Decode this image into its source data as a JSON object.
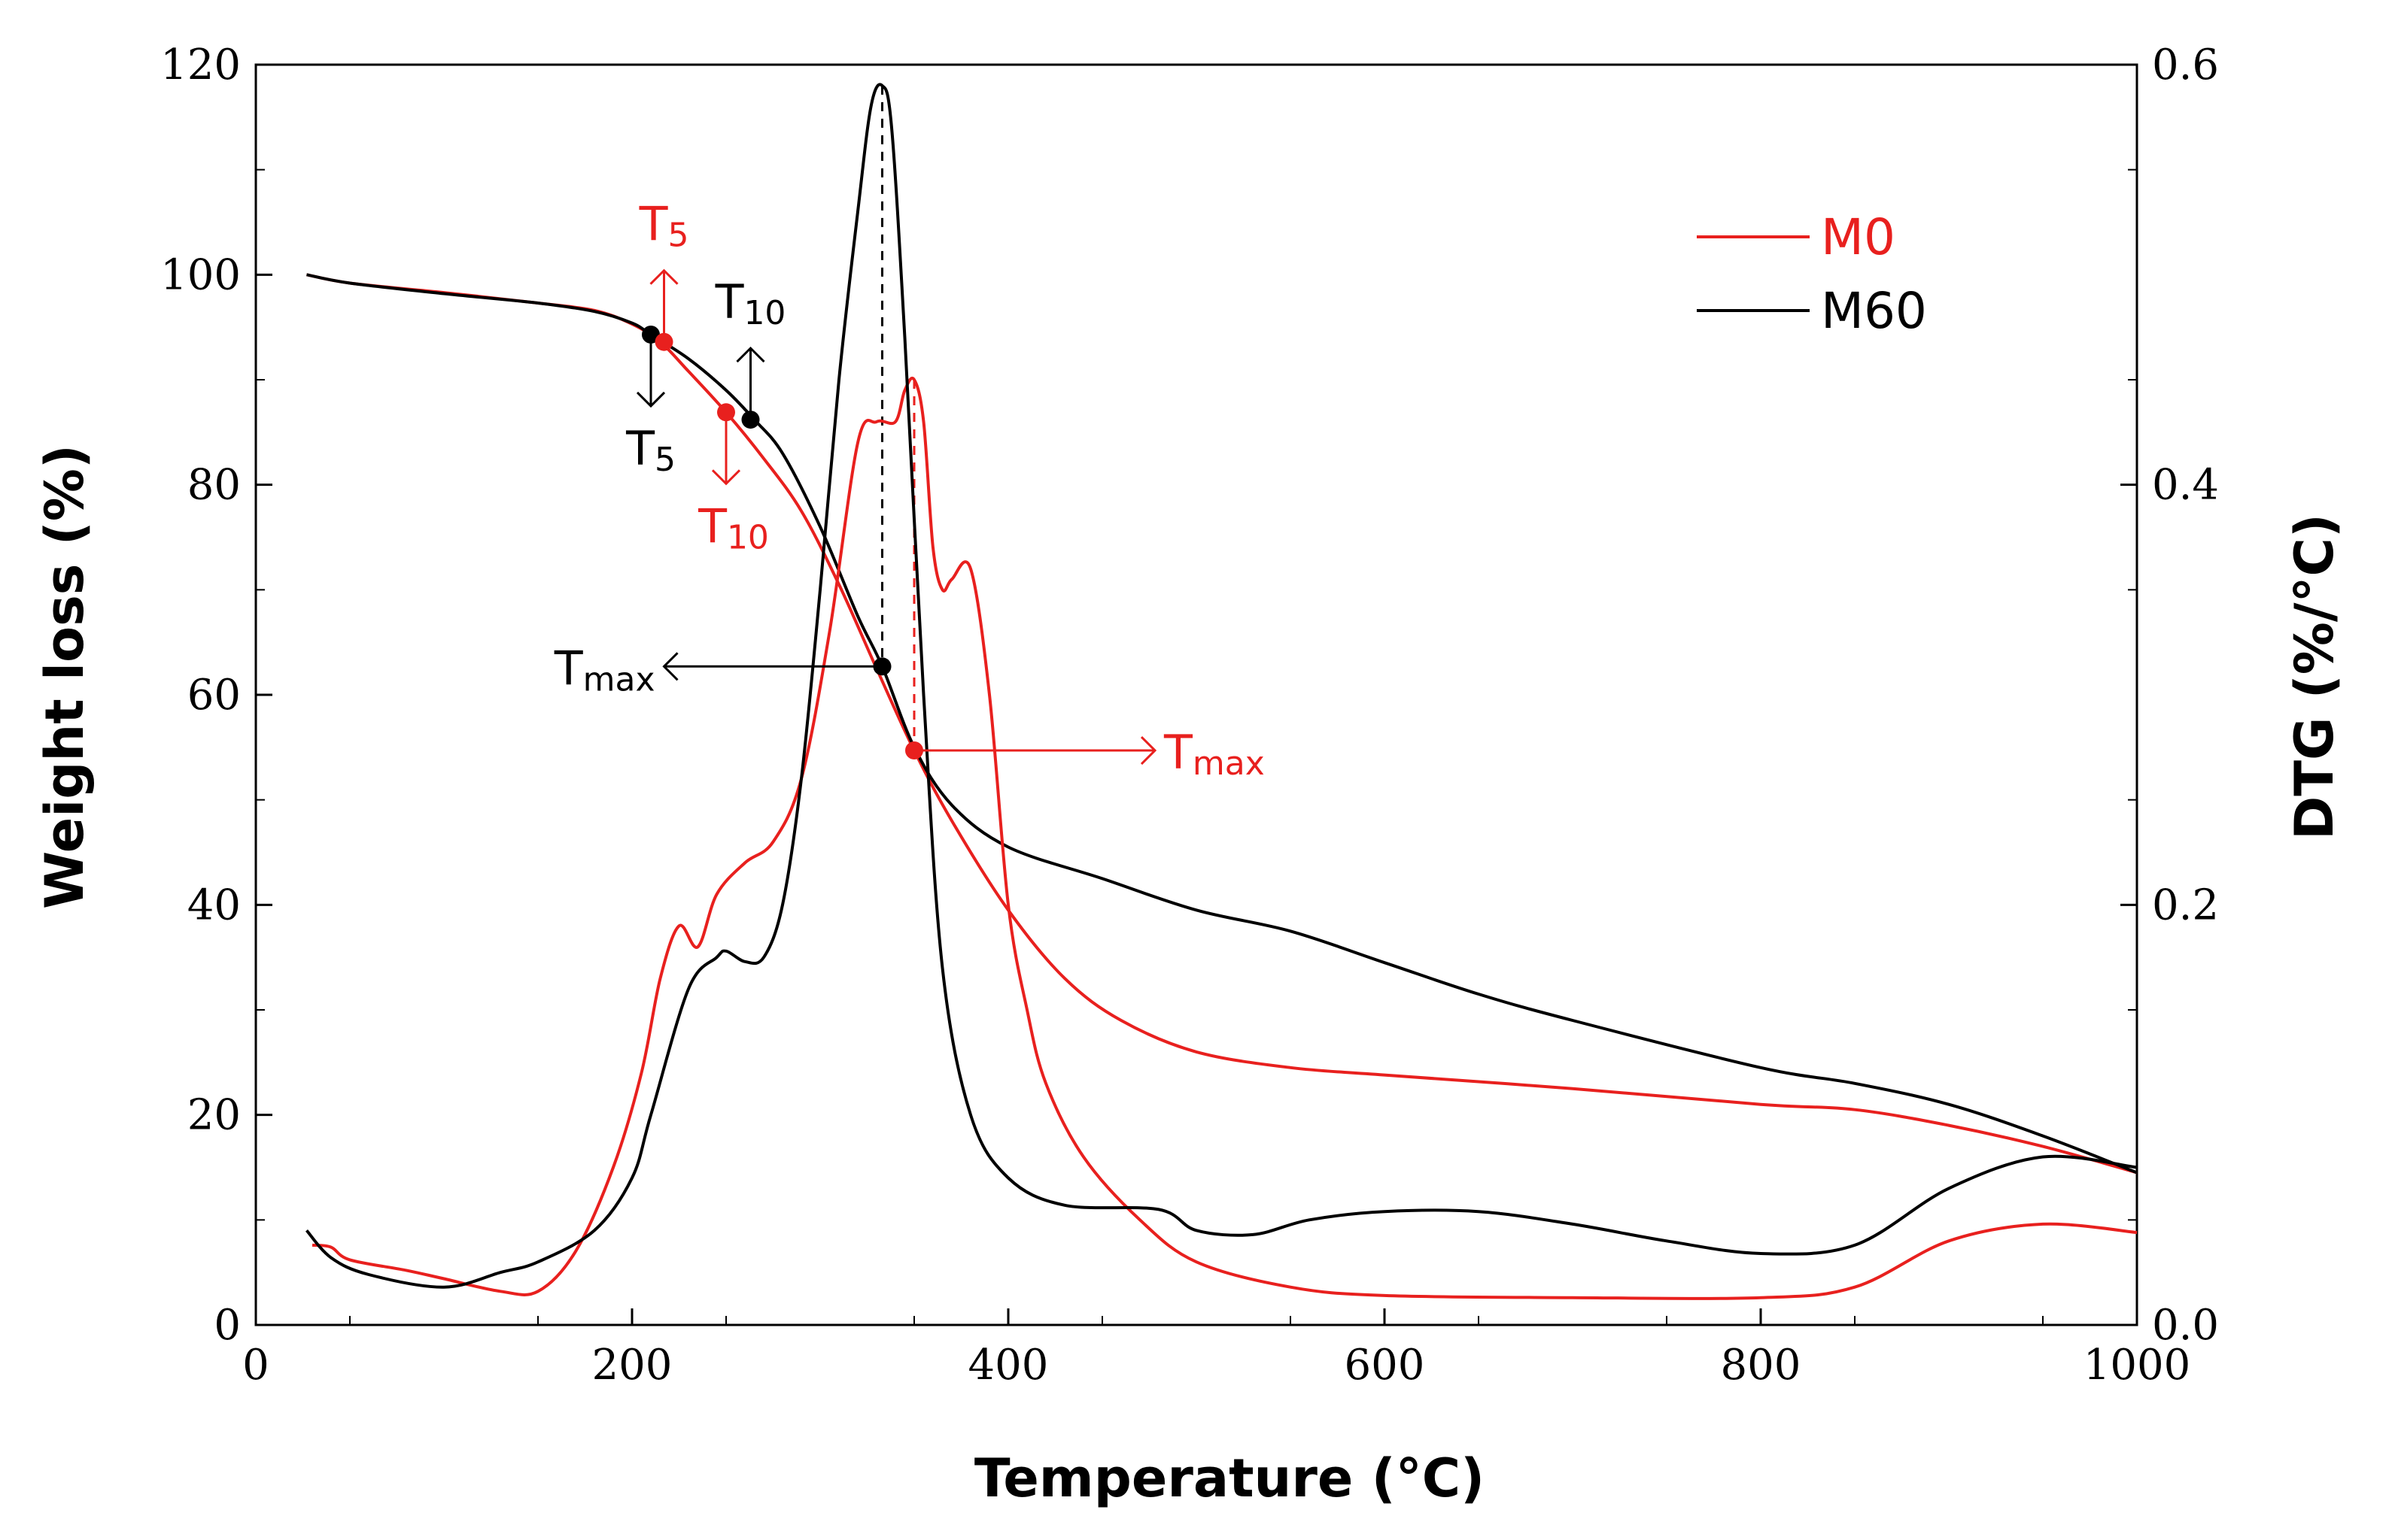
{
  "chart_data": {
    "type": "line",
    "x_axis": {
      "label": "Temperature (°C)",
      "range": [
        0,
        1000
      ],
      "ticks": [
        0,
        200,
        400,
        600,
        800,
        1000
      ],
      "tick_labels": [
        "0",
        "200",
        "400",
        "600",
        "800",
        "1000"
      ]
    },
    "y_axis_left": {
      "label": "Weight loss (%)",
      "range": [
        0,
        120
      ],
      "ticks": [
        0,
        20,
        40,
        60,
        80,
        100,
        120
      ],
      "tick_labels": [
        "0",
        "20",
        "40",
        "60",
        "80",
        "100",
        "120"
      ]
    },
    "y_axis_right": {
      "label": "DTG (%/°C)",
      "range": [
        0.0,
        0.6
      ],
      "ticks": [
        0.0,
        0.2,
        0.4,
        0.6
      ],
      "tick_labels": [
        "0.0",
        "0.2",
        "0.4",
        "0.6"
      ]
    },
    "legend": {
      "position": "top-right",
      "entries": [
        {
          "name": "M0",
          "color": "#e8201e"
        },
        {
          "name": "M60",
          "color": "#000000"
        }
      ]
    },
    "series": [
      {
        "name": "M0",
        "kind": "TG",
        "axis": "left",
        "color": "#e8201e",
        "x": [
          27,
          50,
          100,
          150,
          180,
          200,
          215,
          230,
          250,
          270,
          290,
          310,
          330,
          350,
          370,
          400,
          430,
          460,
          500,
          550,
          600,
          700,
          800,
          850,
          900,
          950,
          1000
        ],
        "y": [
          100,
          99.2,
          98.3,
          97.3,
          96.6,
          95.3,
          93.6,
          90.8,
          86.9,
          82.5,
          77.5,
          70.5,
          62.5,
          54.7,
          48,
          39.5,
          33,
          29,
          26,
          24.5,
          23.8,
          22.5,
          21,
          20.5,
          19,
          17,
          14.5
        ]
      },
      {
        "name": "M60",
        "kind": "TG",
        "axis": "left",
        "color": "#000000",
        "x": [
          27,
          50,
          100,
          150,
          180,
          200,
          210,
          230,
          250,
          265,
          280,
          300,
          320,
          333,
          350,
          370,
          400,
          450,
          500,
          550,
          600,
          650,
          700,
          800,
          850,
          900,
          950,
          1000
        ],
        "y": [
          100,
          99.2,
          98.2,
          97.3,
          96.5,
          95.4,
          94.3,
          92,
          89,
          86.2,
          83,
          76,
          67.5,
          62.7,
          55,
          49.5,
          45.5,
          42.5,
          39.5,
          37.5,
          34.5,
          31.5,
          29,
          24.5,
          23,
          21,
          18,
          14.5
        ]
      },
      {
        "name": "M0",
        "kind": "DTG",
        "axis": "right",
        "color": "#e8201e",
        "x": [
          30,
          40,
          50,
          80,
          100,
          130,
          150,
          170,
          190,
          205,
          215,
          225,
          235,
          245,
          260,
          275,
          290,
          305,
          320,
          330,
          340,
          345,
          350,
          355,
          360,
          365,
          370,
          380,
          390,
          400,
          410,
          420,
          440,
          470,
          500,
          550,
          600,
          700,
          800,
          850,
          900,
          950,
          1000
        ],
        "y": [
          0.038,
          0.037,
          0.031,
          0.026,
          0.022,
          0.016,
          0.016,
          0.035,
          0.075,
          0.12,
          0.165,
          0.19,
          0.18,
          0.205,
          0.22,
          0.23,
          0.26,
          0.33,
          0.42,
          0.43,
          0.43,
          0.445,
          0.45,
          0.43,
          0.37,
          0.35,
          0.355,
          0.36,
          0.3,
          0.2,
          0.15,
          0.115,
          0.08,
          0.05,
          0.03,
          0.018,
          0.014,
          0.013,
          0.013,
          0.018,
          0.04,
          0.048,
          0.044
        ]
      },
      {
        "name": "M60",
        "kind": "DTG",
        "axis": "right",
        "color": "#000000",
        "x": [
          27,
          40,
          60,
          100,
          130,
          150,
          180,
          200,
          210,
          230,
          245,
          250,
          260,
          270,
          280,
          290,
          300,
          310,
          320,
          327,
          333,
          338,
          345,
          355,
          365,
          380,
          400,
          430,
          480,
          500,
          530,
          560,
          600,
          650,
          700,
          750,
          800,
          850,
          900,
          950,
          1000
        ],
        "y": [
          0.045,
          0.032,
          0.024,
          0.018,
          0.025,
          0.03,
          0.045,
          0.07,
          0.1,
          0.16,
          0.175,
          0.178,
          0.173,
          0.175,
          0.2,
          0.26,
          0.35,
          0.45,
          0.53,
          0.58,
          0.59,
          0.57,
          0.47,
          0.3,
          0.17,
          0.1,
          0.07,
          0.057,
          0.055,
          0.045,
          0.043,
          0.05,
          0.054,
          0.054,
          0.048,
          0.04,
          0.034,
          0.038,
          0.065,
          0.08,
          0.075
        ]
      }
    ],
    "annotations": {
      "markers": [
        {
          "series": "M60",
          "label": "T5",
          "x": 210,
          "y": 94.3,
          "color": "#000000",
          "arrow": "down"
        },
        {
          "series": "M60",
          "label": "T10",
          "x": 263,
          "y": 86.2,
          "color": "#000000",
          "arrow": "up"
        },
        {
          "series": "M60",
          "label": "Tmax",
          "x": 333,
          "y": 62.7,
          "color": "#000000",
          "arrow": "left"
        },
        {
          "series": "M0",
          "label": "T5",
          "x": 217,
          "y": 93.6,
          "color": "#e8201e",
          "arrow": "up"
        },
        {
          "series": "M0",
          "label": "T10",
          "x": 250,
          "y": 86.9,
          "color": "#e8201e",
          "arrow": "down"
        },
        {
          "series": "M0",
          "label": "Tmax",
          "x": 350,
          "y": 54.7,
          "color": "#e8201e",
          "arrow": "right"
        }
      ],
      "peak_guides": [
        {
          "x": 333,
          "color": "#000000"
        },
        {
          "x": 350,
          "color": "#e8201e"
        }
      ],
      "texts": [
        {
          "id": "m60-t5",
          "main": "T",
          "sub": "5",
          "color": "#000000"
        },
        {
          "id": "m60-t10",
          "main": "T",
          "sub": "10",
          "color": "#000000"
        },
        {
          "id": "m60-tmax",
          "main": "T",
          "sub": "max",
          "color": "#000000"
        },
        {
          "id": "m0-t5",
          "main": "T",
          "sub": "5",
          "color": "#e8201e"
        },
        {
          "id": "m0-t10",
          "main": "T",
          "sub": "10",
          "color": "#e8201e"
        },
        {
          "id": "m0-tmax",
          "main": "T",
          "sub": "max",
          "color": "#e8201e"
        }
      ]
    }
  }
}
